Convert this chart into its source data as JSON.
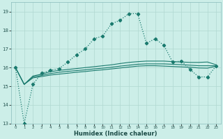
{
  "xlabel": "Humidex (Indice chaleur)",
  "bg_color": "#cceee8",
  "grid_color": "#b0d8d0",
  "line_color": "#1a7a6e",
  "xlim": [
    -0.5,
    23.5
  ],
  "ylim": [
    13,
    19.5
  ],
  "yticks": [
    13,
    14,
    15,
    16,
    17,
    18,
    19
  ],
  "xticks": [
    0,
    1,
    2,
    3,
    4,
    5,
    6,
    7,
    8,
    9,
    10,
    11,
    12,
    13,
    14,
    15,
    16,
    17,
    18,
    19,
    20,
    21,
    22,
    23
  ],
  "line1_x": [
    0,
    1,
    2,
    3,
    4,
    5,
    6,
    7,
    8,
    9,
    10,
    11,
    12,
    13,
    14,
    15,
    16,
    17,
    18,
    19,
    20,
    21,
    22,
    23
  ],
  "line1_y": [
    16.0,
    13.0,
    15.1,
    15.7,
    15.85,
    15.95,
    16.3,
    16.7,
    17.0,
    17.55,
    17.7,
    18.35,
    18.55,
    18.9,
    18.9,
    17.3,
    17.55,
    17.2,
    16.3,
    16.35,
    15.9,
    15.5,
    15.5,
    16.1
  ],
  "line2_x": [
    0,
    1,
    2,
    3,
    4,
    5,
    6,
    7,
    8,
    9,
    10,
    11,
    12,
    13,
    14,
    15,
    16,
    17,
    18,
    19,
    20,
    21,
    22,
    23
  ],
  "line2_y": [
    16.0,
    15.1,
    15.55,
    15.65,
    15.78,
    15.85,
    15.9,
    15.95,
    16.0,
    16.05,
    16.1,
    16.15,
    16.22,
    16.28,
    16.32,
    16.35,
    16.35,
    16.35,
    16.32,
    16.3,
    16.28,
    16.28,
    16.3,
    16.15
  ],
  "line3_x": [
    0,
    1,
    2,
    3,
    4,
    5,
    6,
    7,
    8,
    9,
    10,
    11,
    12,
    13,
    14,
    15,
    16,
    17,
    18,
    19,
    20,
    21,
    22,
    23
  ],
  "line3_y": [
    16.0,
    15.1,
    15.5,
    15.58,
    15.68,
    15.75,
    15.8,
    15.84,
    15.88,
    15.93,
    15.97,
    16.02,
    16.08,
    16.13,
    16.18,
    16.2,
    16.2,
    16.2,
    16.18,
    16.16,
    16.13,
    16.1,
    16.1,
    16.1
  ],
  "line4_x": [
    0,
    1,
    2,
    3,
    4,
    5,
    6,
    7,
    8,
    9,
    10,
    11,
    12,
    13,
    14,
    15,
    16,
    17,
    18,
    19,
    20,
    21,
    22,
    23
  ],
  "line4_y": [
    16.0,
    15.1,
    15.45,
    15.52,
    15.6,
    15.65,
    15.7,
    15.75,
    15.79,
    15.84,
    15.88,
    15.93,
    15.98,
    16.03,
    16.08,
    16.1,
    16.1,
    16.08,
    16.06,
    16.04,
    16.02,
    15.98,
    15.97,
    16.08
  ]
}
